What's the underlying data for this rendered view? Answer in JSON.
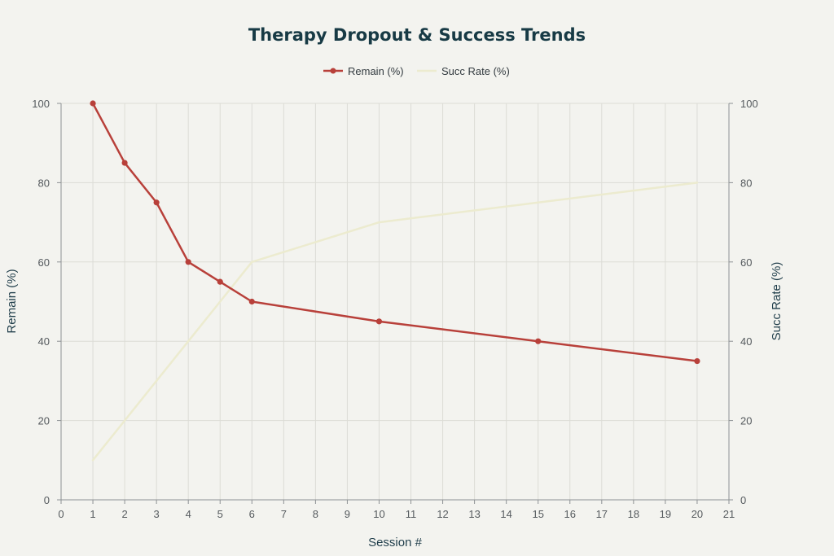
{
  "chart_data": {
    "type": "line",
    "title": "Therapy Dropout & Success Trends",
    "xlabel": "Session #",
    "ylabel_left": "Remain (%)",
    "ylabel_right": "Succ Rate (%)",
    "xlim": [
      0,
      21
    ],
    "ylim_left": [
      0,
      100
    ],
    "ylim_right": [
      0,
      100
    ],
    "x_ticks": [
      0,
      1,
      2,
      3,
      4,
      5,
      6,
      7,
      8,
      9,
      10,
      11,
      12,
      13,
      14,
      15,
      16,
      17,
      18,
      19,
      20,
      21
    ],
    "y_ticks": [
      0,
      20,
      40,
      60,
      80,
      100
    ],
    "grid": true,
    "legend_position": "top-center",
    "x": [
      1,
      2,
      3,
      4,
      5,
      6,
      10,
      15,
      20
    ],
    "series": [
      {
        "name": "Remain (%)",
        "axis": "left",
        "color": "#b8403a",
        "markers": true,
        "values": [
          100,
          85,
          75,
          60,
          55,
          50,
          45,
          40,
          35
        ]
      },
      {
        "name": "Succ Rate (%)",
        "axis": "right",
        "color": "#ecebcf",
        "markers": false,
        "values": [
          10,
          20,
          30,
          40,
          50,
          60,
          70,
          75,
          80
        ]
      }
    ]
  }
}
